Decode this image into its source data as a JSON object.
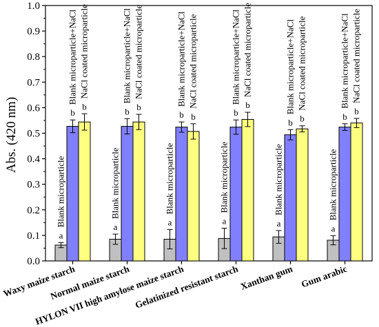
{
  "chart_data": {
    "type": "bar",
    "ylabel": "Abs. (420 nm)",
    "xlabel": "",
    "ylim": [
      0.0,
      1.0
    ],
    "y_ticks": [
      "0.0",
      "0.1",
      "0.2",
      "0.3",
      "0.4",
      "0.5",
      "0.6",
      "0.7",
      "0.8",
      "0.9",
      "1.0"
    ],
    "categories": [
      "Waxy maize starch",
      "Normal maize starch",
      "HYLON VII high amylose maize starch",
      "Gelatinized resistant starch",
      "Xanthan gum",
      "Gum arabic"
    ],
    "series": [
      {
        "name": "Blank microparticle",
        "color": "#c0c0c0",
        "values": [
          0.062,
          0.085,
          0.085,
          0.088,
          0.094,
          0.081
        ],
        "errors": [
          0.01,
          0.02,
          0.038,
          0.04,
          0.025,
          0.018
        ],
        "letters": [
          "a",
          "a",
          "a",
          "a",
          "a",
          "a"
        ]
      },
      {
        "name": "Blank microparticle+NaCl",
        "color": "#8080ff",
        "values": [
          0.527,
          0.527,
          0.524,
          0.524,
          0.494,
          0.524
        ],
        "errors": [
          0.025,
          0.03,
          0.02,
          0.028,
          0.02,
          0.013
        ],
        "letters": [
          "b",
          "b",
          "b",
          "b",
          "b",
          "b"
        ]
      },
      {
        "name": "NaCl coated microparticle",
        "color": "#ffff80",
        "values": [
          0.544,
          0.544,
          0.507,
          0.554,
          0.517,
          0.54
        ],
        "errors": [
          0.032,
          0.03,
          0.03,
          0.028,
          0.012,
          0.018
        ],
        "letters": [
          "b",
          "b",
          "b",
          "b",
          "b",
          "b"
        ]
      }
    ]
  }
}
